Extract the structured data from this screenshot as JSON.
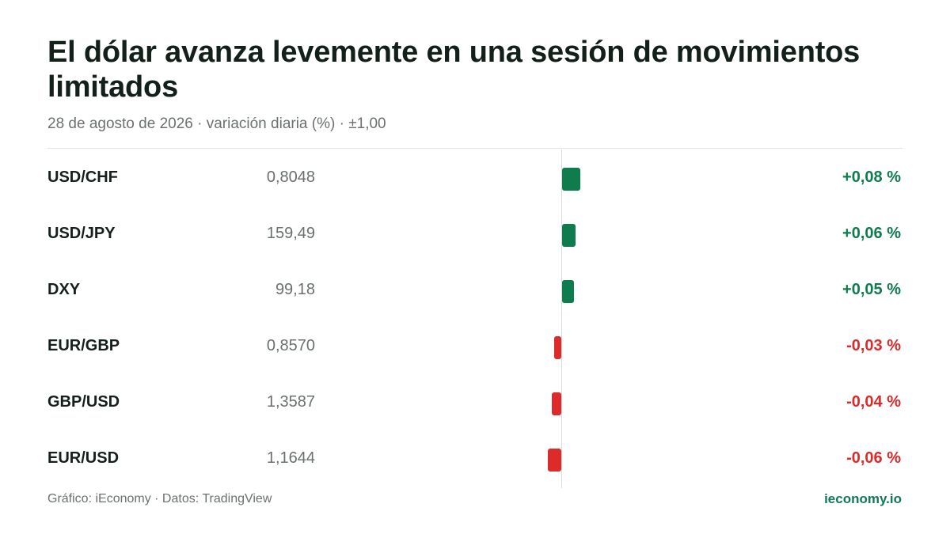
{
  "header": {
    "title": "El dólar avanza levemente en una sesión de movimientos limitados",
    "subtitle": "28 de agosto de 2026 · variación diaria (%) · ±1,00"
  },
  "colors": {
    "positive": "#0f7c4e",
    "negative": "#dd2a2a"
  },
  "chart_data": {
    "type": "bar",
    "orientation": "horizontal",
    "title": "El dólar avanza levemente en una sesión de movimientos limitados",
    "subtitle": "28 de agosto de 2026 · variación diaria (%) · ±1,00",
    "xlim": [
      -1,
      1
    ],
    "rows": [
      {
        "pair": "USD/CHF",
        "price": "0,8048",
        "change": 0.08,
        "label": "+0,08 %"
      },
      {
        "pair": "USD/JPY",
        "price": "159,49",
        "change": 0.06,
        "label": "+0,06 %"
      },
      {
        "pair": "DXY",
        "price": "99,18",
        "change": 0.05,
        "label": "+0,05 %"
      },
      {
        "pair": "EUR/GBP",
        "price": "0,8570",
        "change": -0.03,
        "label": "-0,03 %"
      },
      {
        "pair": "GBP/USD",
        "price": "1,3587",
        "change": -0.04,
        "label": "-0,04 %"
      },
      {
        "pair": "EUR/USD",
        "price": "1,1644",
        "change": -0.06,
        "label": "-0,06 %"
      }
    ]
  },
  "footer": {
    "source": "Gráfico: iEconomy · Datos: TradingView",
    "brand": "ieconomy.io"
  }
}
